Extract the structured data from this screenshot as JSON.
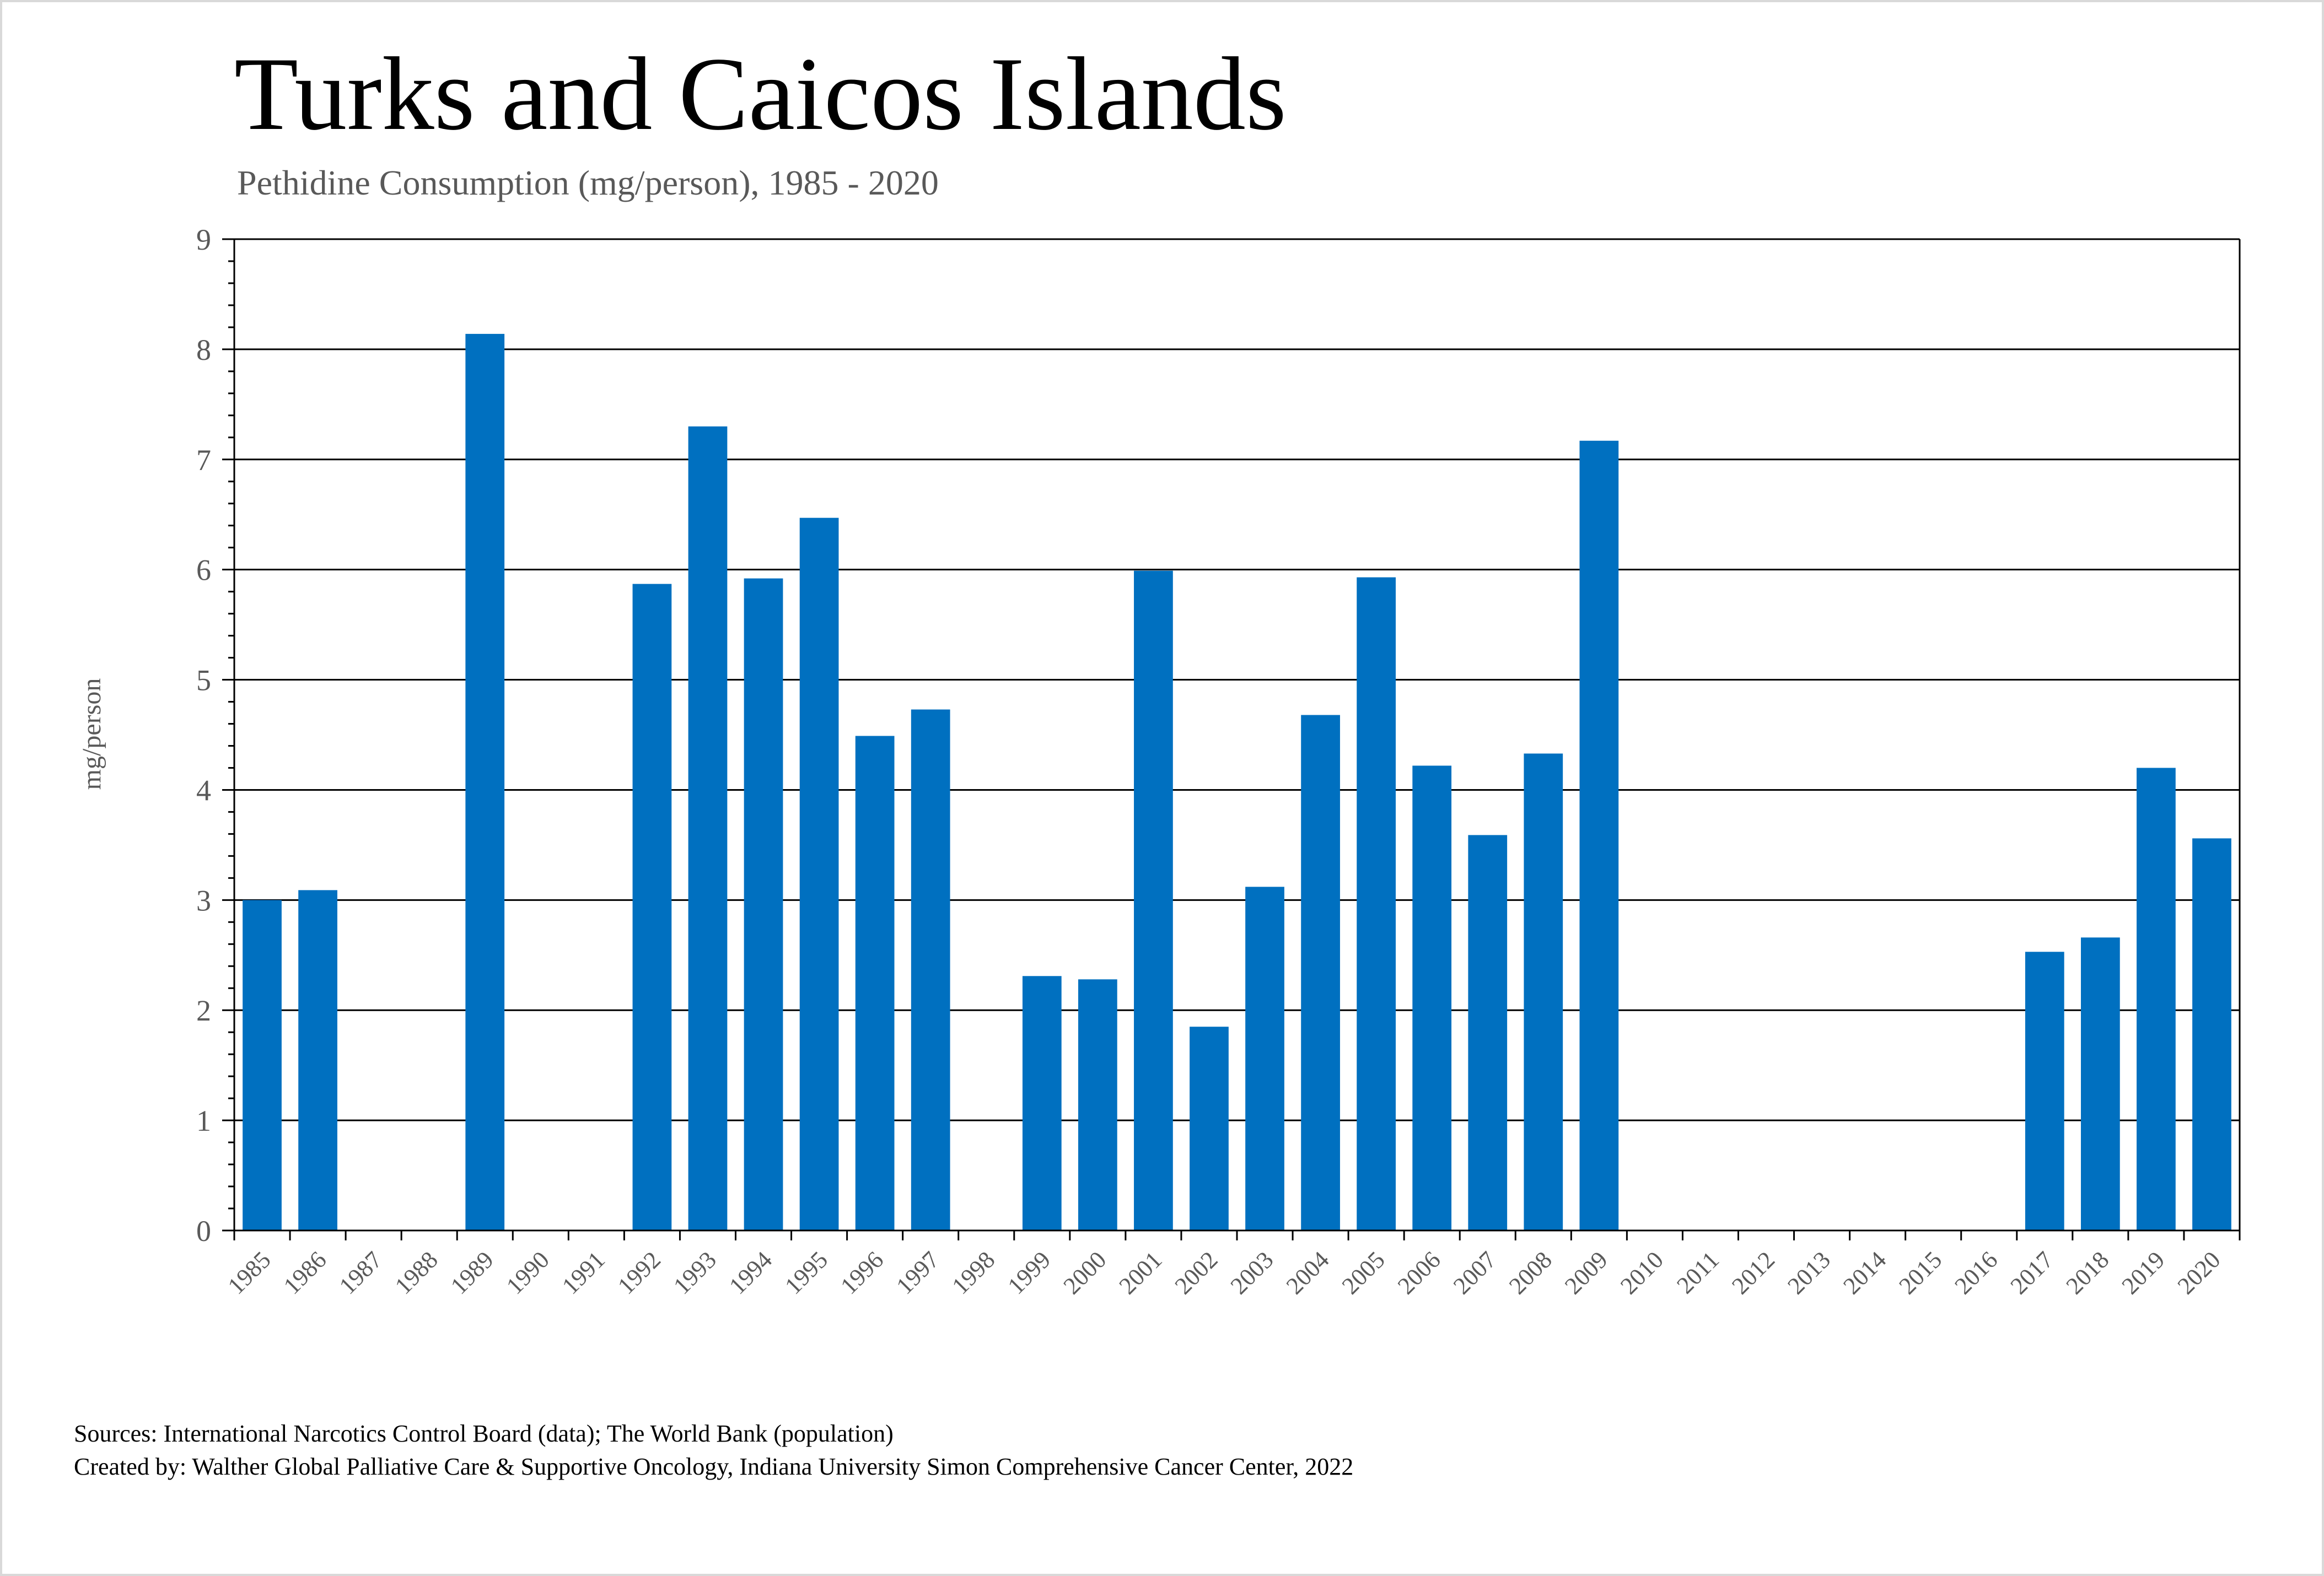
{
  "chart_data": {
    "type": "bar",
    "title": "Turks and Caicos Islands",
    "subtitle": "Pethidine Consumption (mg/person), 1985 - 2020",
    "ylabel": "mg/person",
    "xlabel": "",
    "ylim": [
      0,
      9
    ],
    "yticks": [
      0,
      1,
      2,
      3,
      4,
      5,
      6,
      7,
      8,
      9
    ],
    "grid": true,
    "bar_color": "#0070C0",
    "categories": [
      "1985",
      "1986",
      "1987",
      "1988",
      "1989",
      "1990",
      "1991",
      "1992",
      "1993",
      "1994",
      "1995",
      "1996",
      "1997",
      "1998",
      "1999",
      "2000",
      "2001",
      "2002",
      "2003",
      "2004",
      "2005",
      "2006",
      "2007",
      "2008",
      "2009",
      "2010",
      "2011",
      "2012",
      "2013",
      "2014",
      "2015",
      "2016",
      "2017",
      "2018",
      "2019",
      "2020"
    ],
    "values": [
      3.0,
      3.09,
      0,
      0,
      8.14,
      0,
      0,
      5.87,
      7.3,
      5.92,
      6.47,
      4.49,
      4.73,
      0,
      2.31,
      2.28,
      5.99,
      1.85,
      3.12,
      4.68,
      5.93,
      4.22,
      3.59,
      4.33,
      7.17,
      0,
      0,
      0,
      0,
      0,
      0,
      0,
      2.53,
      2.66,
      4.2,
      3.56
    ]
  },
  "footer": {
    "sources": "Sources: International Narcotics Control Board (data); The World Bank (population)",
    "created_by": "Created by: Walther Global Palliative Care & Supportive Oncology, Indiana University Simon Comprehensive Cancer Center, 2022"
  }
}
